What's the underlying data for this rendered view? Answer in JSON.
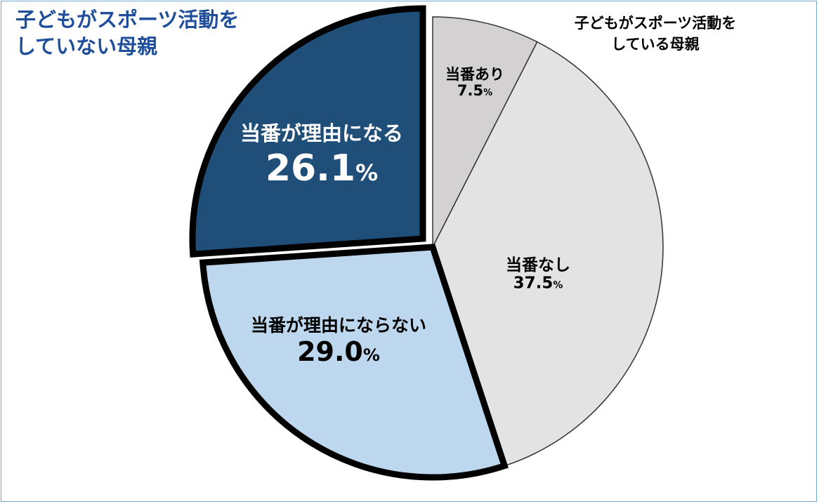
{
  "chart_data": {
    "type": "pie",
    "start_angle_deg": 0,
    "direction": "clockwise",
    "slices": [
      {
        "label": "当番あり",
        "value": 7.5,
        "value_text": "7.5%",
        "color": "#d3d1d1"
      },
      {
        "label": "当番なし",
        "value": 37.5,
        "value_text": "37.5%",
        "color": "#e3e3e3"
      },
      {
        "label": "当番が理由にならない",
        "value": 29.0,
        "value_text": "29.0%",
        "color": "#bdd7ee",
        "highlighted": true
      },
      {
        "label": "当番が理由になる",
        "value": 26.1,
        "value_text": "26.1%",
        "color": "#1f4e79",
        "highlighted": true,
        "exploded": true
      }
    ],
    "group_labels": [
      {
        "text": [
          "子どもがスポーツ活動を",
          "していない母親"
        ],
        "color": "#1f4e9a"
      },
      {
        "text": [
          "子どもがスポーツ活動を",
          "している母親"
        ],
        "color": "#000000"
      }
    ]
  }
}
